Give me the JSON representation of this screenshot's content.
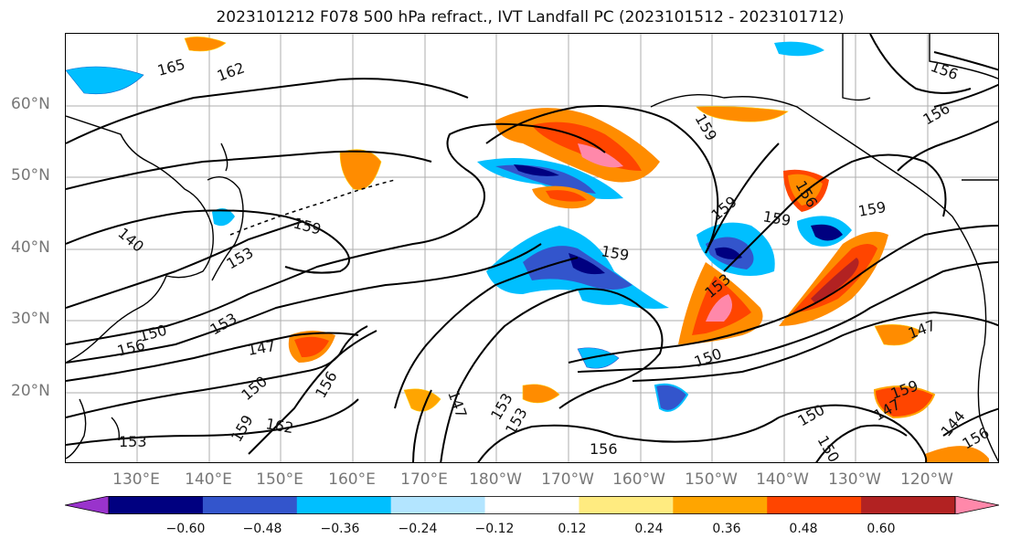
{
  "title": "2023101212 F078 500 hPa refract., IVT Landfall PC (2023101512 - 2023101712)",
  "lat_labels": [
    "60°N",
    "50°N",
    "40°N",
    "30°N",
    "20°N"
  ],
  "lon_labels": [
    "130°E",
    "140°E",
    "150°E",
    "160°E",
    "170°E",
    "180°W",
    "170°W",
    "160°W",
    "150°W",
    "140°W",
    "130°W",
    "120°W"
  ],
  "colorbar": {
    "ticks": [
      "−0.60",
      "−0.48",
      "−0.36",
      "−0.24",
      "−0.12",
      "0.12",
      "0.24",
      "0.36",
      "0.48",
      "0.60"
    ],
    "colors": [
      "#9933cc",
      "#000080",
      "#3355cc",
      "#00bfff",
      "#b3e5ff",
      "#ffffff",
      "#ffeb80",
      "#ffa500",
      "#ff4500",
      "#b22222",
      "#ff88aa"
    ]
  },
  "contour_labels": [
    "165",
    "162",
    "156",
    "156",
    "159",
    "159",
    "159",
    "159",
    "153",
    "153",
    "150",
    "156",
    "153",
    "147",
    "150",
    "162",
    "159",
    "156",
    "153",
    "147",
    "153",
    "156",
    "150",
    "150",
    "147",
    "147",
    "144",
    "150",
    "156",
    "153",
    "140",
    "159",
    "156",
    "159",
    "159"
  ]
}
